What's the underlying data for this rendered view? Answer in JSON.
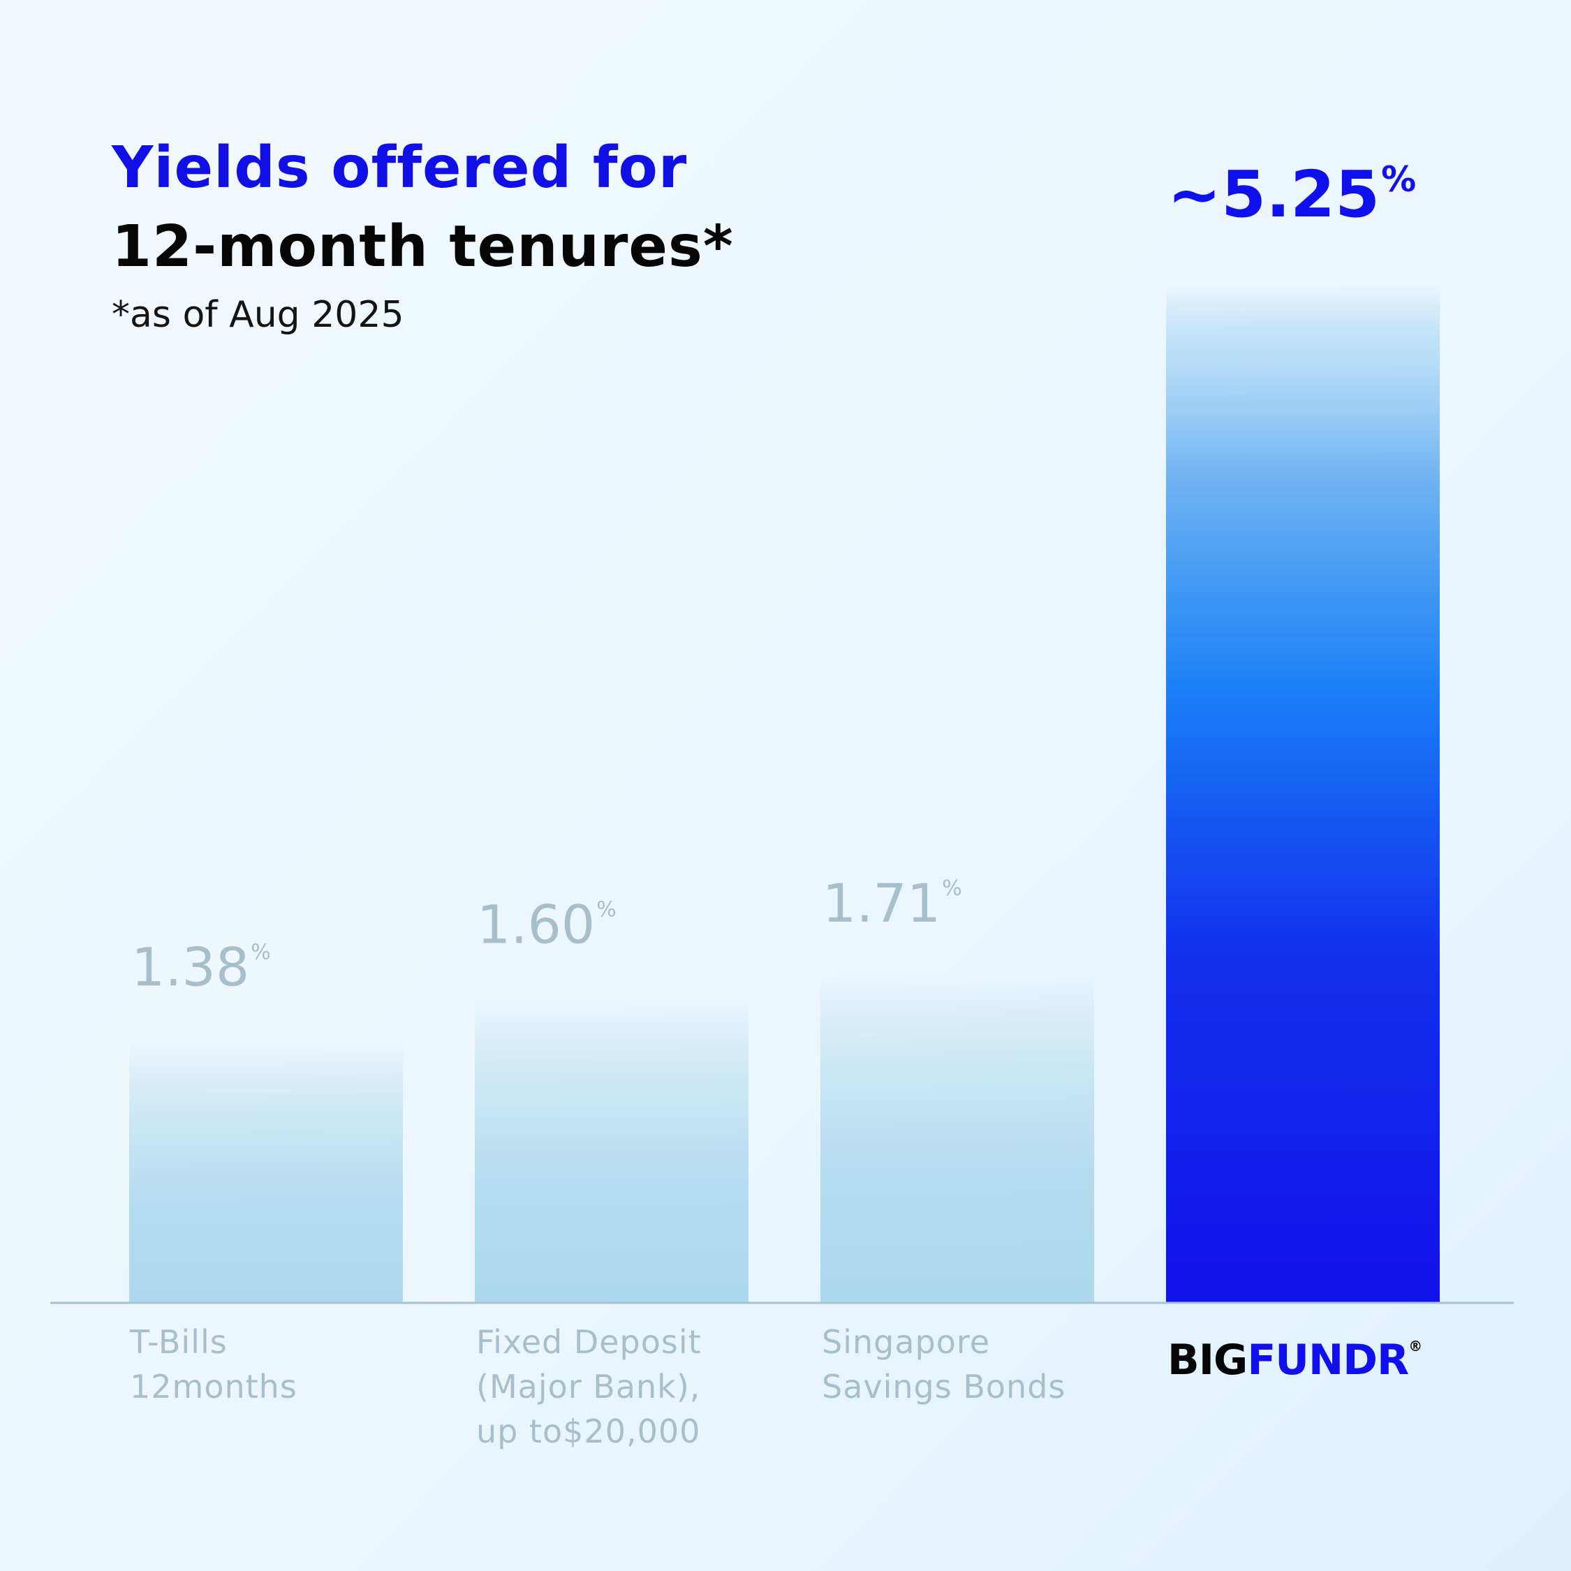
{
  "title_line1": "Yields offered for",
  "title_line2": "12-month tenures*",
  "subtitle": "*as of Aug 2025",
  "chart_data": {
    "type": "bar",
    "categories": [
      [
        "T-Bills",
        "12months"
      ],
      [
        "Fixed Deposit",
        "(Major Bank),",
        "up to$20,000"
      ],
      [
        "Singapore",
        "Savings Bonds"
      ],
      [
        "BIGFUNDR"
      ]
    ],
    "values": [
      1.38,
      1.6,
      1.71,
      5.25
    ],
    "value_labels": [
      "1.38",
      "1.60",
      "1.71",
      "~5.25"
    ],
    "unit_label": "%",
    "highlight_index": 3,
    "ylim": [
      0,
      5.25
    ],
    "grid": false,
    "legend": "none"
  },
  "logo": {
    "part1": "BIG",
    "part2": "FUNDR",
    "mark": "®"
  },
  "colors": {
    "accent": "#1010ee",
    "accent_mid": "#1a7cf5",
    "muted_bar": "#a8d6ec",
    "muted_label": "#a7bfcc",
    "title_blue": "#0f0fe6"
  }
}
